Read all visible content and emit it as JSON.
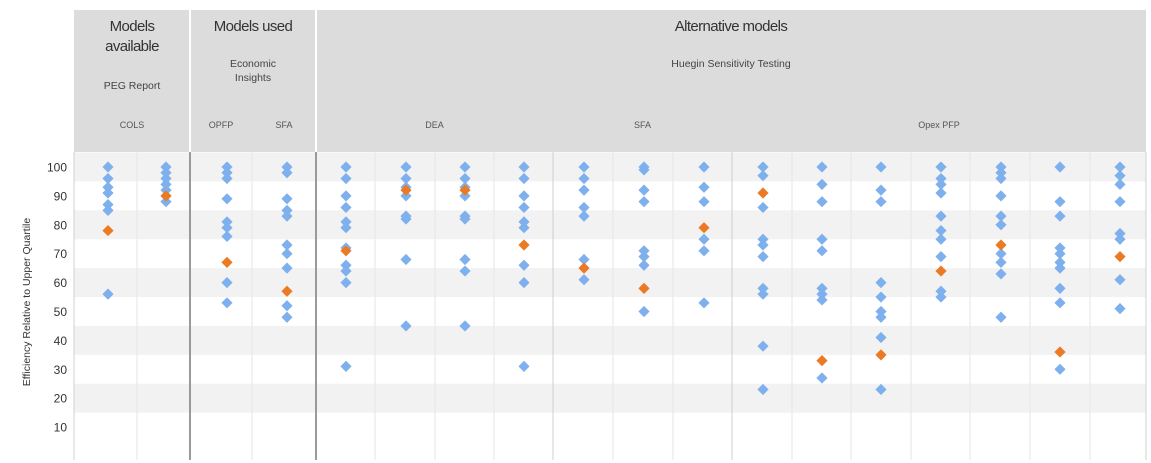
{
  "header": {
    "groups": [
      {
        "title_lines": [
          "Models",
          "available"
        ],
        "subtitle_lines": [
          "PEG Report"
        ],
        "cols_start": 0,
        "cols_end": 2
      },
      {
        "title_lines": [
          "Models used"
        ],
        "subtitle_lines": [
          "Economic",
          "Insights"
        ],
        "cols_start": 2,
        "cols_end": 4
      },
      {
        "title_lines": [
          "Alternative models"
        ],
        "subtitle_lines": [
          "Huegin Sensitivity Testing"
        ],
        "cols_start": 4,
        "cols_end": 18
      }
    ],
    "methods": [
      {
        "label": "COLS",
        "cols_start": 0,
        "cols_end": 2
      },
      {
        "label": "OPFP",
        "cols_start": 2,
        "cols_end": 3
      },
      {
        "label": "SFA",
        "cols_start": 3,
        "cols_end": 4
      },
      {
        "label": "DEA",
        "cols_start": 4,
        "cols_end": 8
      },
      {
        "label": "SFA",
        "cols_start": 8,
        "cols_end": 11
      },
      {
        "label": "Opex PFP",
        "cols_start": 11,
        "cols_end": 18
      }
    ]
  },
  "chart_data": {
    "type": "scatter",
    "ylabel": "Efficiency Relative to Upper Quartile",
    "ylim": [
      0,
      100
    ],
    "yticks": [
      10,
      20,
      30,
      40,
      50,
      60,
      70,
      80,
      90,
      100
    ],
    "grid": "alternating horizontal bands",
    "colors": {
      "business": "#7fb0ee",
      "highlight": "#ec7a25",
      "band": "#f2f2f2",
      "header": "#dcdcdc"
    },
    "columns": [
      {
        "values": [
          100,
          96,
          93,
          91,
          87,
          85,
          56
        ],
        "highlight": 78
      },
      {
        "values": [
          100,
          98,
          96,
          94,
          92,
          90,
          88
        ],
        "highlight": 90
      },
      {
        "values": [
          100,
          98,
          96,
          89,
          81,
          79,
          76,
          60,
          53
        ],
        "highlight": 67
      },
      {
        "values": [
          100,
          98,
          89,
          85,
          83,
          73,
          70,
          65,
          52,
          48
        ],
        "highlight": 57
      },
      {
        "values": [
          100,
          96,
          90,
          86,
          81,
          79,
          72,
          66,
          64,
          60,
          31
        ],
        "highlight": 71
      },
      {
        "values": [
          100,
          96,
          93,
          90,
          83,
          82,
          68,
          45
        ],
        "highlight": 92
      },
      {
        "values": [
          100,
          96,
          93,
          90,
          83,
          82,
          68,
          64,
          45
        ],
        "highlight": 92
      },
      {
        "values": [
          100,
          96,
          90,
          86,
          81,
          79,
          66,
          60,
          31
        ],
        "highlight": 73
      },
      {
        "values": [
          100,
          96,
          92,
          86,
          83,
          68,
          61
        ],
        "highlight": 65
      },
      {
        "values": [
          100,
          99,
          92,
          88,
          71,
          69,
          66,
          50
        ],
        "highlight": 58
      },
      {
        "values": [
          100,
          93,
          88,
          75,
          71,
          53
        ],
        "highlight": 79
      },
      {
        "values": [
          100,
          97,
          86,
          75,
          73,
          69,
          58,
          56,
          38,
          23
        ],
        "highlight": 91
      },
      {
        "values": [
          100,
          94,
          88,
          75,
          71,
          58,
          56,
          54,
          27
        ],
        "highlight": 33
      },
      {
        "values": [
          100,
          92,
          88,
          60,
          55,
          50,
          48,
          41,
          23
        ],
        "highlight": 35
      },
      {
        "values": [
          100,
          96,
          94,
          91,
          83,
          78,
          75,
          69,
          57,
          55
        ],
        "highlight": 64
      },
      {
        "values": [
          100,
          98,
          96,
          90,
          83,
          80,
          70,
          67,
          63,
          48
        ],
        "highlight": 73
      },
      {
        "values": [
          100,
          88,
          83,
          72,
          70,
          67,
          65,
          58,
          53,
          30
        ],
        "highlight": 36
      },
      {
        "values": [
          100,
          97,
          94,
          88,
          77,
          75,
          61,
          51
        ],
        "highlight": 69
      }
    ]
  }
}
